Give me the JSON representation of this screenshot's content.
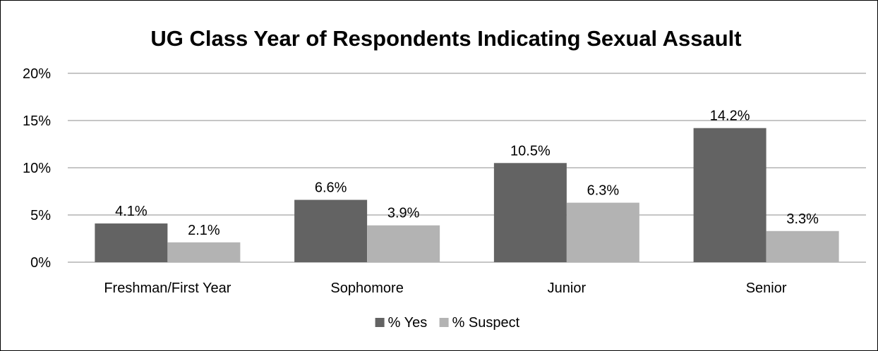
{
  "chart_data": {
    "type": "bar",
    "title": "UG Class Year of Respondents Indicating Sexual Assault",
    "categories": [
      "Freshman/First Year",
      "Sophomore",
      "Junior",
      "Senior"
    ],
    "series": [
      {
        "name": "% Yes",
        "color": "#636363",
        "values": [
          4.1,
          6.6,
          10.5,
          14.2
        ],
        "labels": [
          "4.1%",
          "6.6%",
          "10.5%",
          "14.2%"
        ]
      },
      {
        "name": "% Suspect",
        "color": "#b3b3b3",
        "values": [
          2.1,
          3.9,
          6.3,
          3.3
        ],
        "labels": [
          "2.1%",
          "3.9%",
          "6.3%",
          "3.3%"
        ]
      }
    ],
    "ylim": [
      0,
      20
    ],
    "yticks": [
      0,
      5,
      10,
      15,
      20
    ],
    "ytick_labels": [
      "0%",
      "5%",
      "10%",
      "15%",
      "20%"
    ],
    "grid": true,
    "legend_position": "bottom"
  }
}
